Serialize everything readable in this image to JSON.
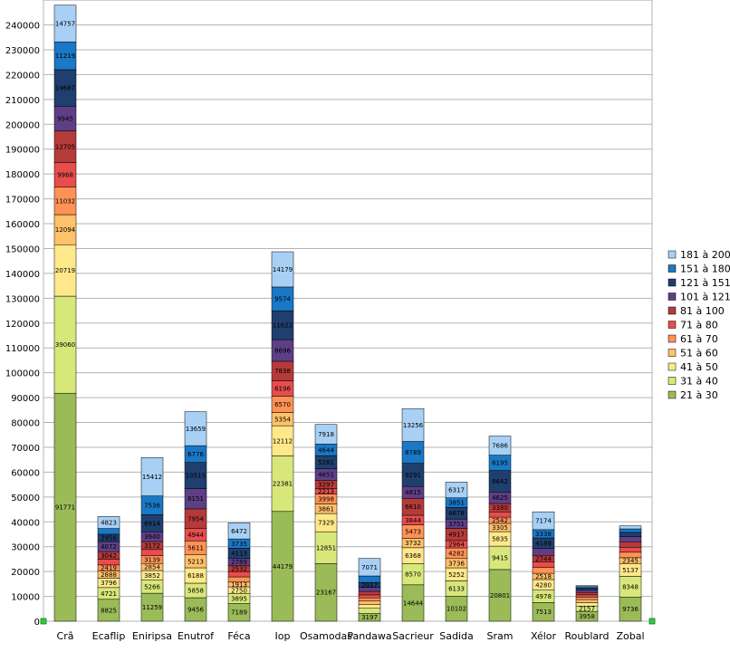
{
  "chart_data": {
    "type": "bar",
    "stacked": true,
    "title": "",
    "xlabel": "",
    "ylabel": "",
    "ylim": [
      0,
      250000
    ],
    "ytick_step": 10000,
    "grid": true,
    "legend_position": "right",
    "categories": [
      "Crâ",
      "Ecaflip",
      "Eniripsa",
      "Enutrof",
      "Féca",
      "Iop",
      "Osamodas",
      "Pandawa",
      "Sacrieur",
      "Sadida",
      "Sram",
      "Xélor",
      "Roublard",
      "Zobal"
    ],
    "series": [
      {
        "name": "21 à 30",
        "color": "#9bbb59",
        "values": [
          91771,
          8825,
          11259,
          9456,
          7189,
          44179,
          23167,
          3197,
          14644,
          10102,
          20801,
          7513,
          3958,
          9736
        ]
      },
      {
        "name": "31 à 40",
        "color": "#d7e77a",
        "values": [
          39060,
          4721,
          5266,
          5858,
          3895,
          22381,
          12851,
          2000,
          8570,
          6133,
          9415,
          4978,
          2157,
          8348
        ]
      },
      {
        "name": "41 à 50",
        "color": "#ffe88a",
        "values": [
          20719,
          3796,
          3852,
          6188,
          2750,
          12112,
          7329,
          1500,
          6368,
          5252,
          5835,
          4280,
          1400,
          5137
        ]
      },
      {
        "name": "51 à 60",
        "color": "#ffc169",
        "values": [
          12094,
          2888,
          2854,
          5213,
          1913,
          5354,
          3861,
          1400,
          3732,
          3736,
          3305,
          2518,
          1200,
          2345
        ]
      },
      {
        "name": "61 à 70",
        "color": "#ff9255",
        "values": [
          11032,
          2419,
          3139,
          5611,
          2100,
          6570,
          3998,
          1300,
          5473,
          4282,
          2542,
          2300,
          1000,
          2200
        ]
      },
      {
        "name": "71 à 80",
        "color": "#e84d4d",
        "values": [
          9968,
          2300,
          2500,
          4944,
          2100,
          6196,
          2213,
          1200,
          3844,
          2964,
          2100,
          2200,
          900,
          2000
        ]
      },
      {
        "name": "81 à 100",
        "color": "#b53a3a",
        "values": [
          12705,
          3042,
          3172,
          7954,
          2532,
          7838,
          3297,
          1400,
          6810,
          4917,
          3380,
          2744,
          1000,
          2200
        ]
      },
      {
        "name": "101 à 121",
        "color": "#5e3f86",
        "values": [
          9945,
          4072,
          3940,
          8151,
          2789,
          8696,
          4651,
          1600,
          4815,
          3751,
          4625,
          2800,
          900,
          2100
        ]
      },
      {
        "name": "121 à 151",
        "color": "#1f3f6e",
        "values": [
          14687,
          2956,
          6914,
          10515,
          4113,
          11622,
          5281,
          2017,
          9291,
          4678,
          8642,
          4189,
          800,
          1700
        ]
      },
      {
        "name": "151 à 180",
        "color": "#1a78c6",
        "values": [
          11219,
          2300,
          7536,
          6776,
          3735,
          9574,
          4644,
          2600,
          8789,
          3851,
          6195,
          3338,
          600,
          1400
        ]
      },
      {
        "name": "181 à 200",
        "color": "#a8d0f5",
        "values": [
          14757,
          4823,
          15412,
          13659,
          6472,
          14179,
          7918,
          7071,
          13256,
          6317,
          7686,
          7174,
          400,
          1200
        ]
      }
    ],
    "visible_labels": [
      [
        "91771",
        "39060",
        "20719",
        "12094",
        "11032",
        "9968",
        "12705",
        "9945",
        "14687",
        "11219",
        "14757"
      ],
      [
        "8825",
        "4721",
        "3796",
        "2888",
        "2419",
        "",
        "3042",
        "4072",
        "2956",
        "",
        "4823"
      ],
      [
        "11259",
        "5266",
        "3852",
        "2854",
        "3139",
        "",
        "3172",
        "3940",
        "6914",
        "7536",
        "15412"
      ],
      [
        "9456",
        "5858",
        "6188",
        "5213",
        "5611",
        "4944",
        "7954",
        "8151",
        "10515",
        "6776",
        "13659"
      ],
      [
        "7189",
        "3895",
        "2750",
        "1913",
        "",
        "",
        "2532",
        "2789",
        "4113",
        "3735",
        "6472"
      ],
      [
        "44179",
        "22381",
        "12112",
        "5354",
        "6570",
        "6196",
        "7838",
        "8696",
        "11622",
        "9574",
        "14179"
      ],
      [
        "23167",
        "12851",
        "7329",
        "3861",
        "3998",
        "2213",
        "3297",
        "4651",
        "5281",
        "4644",
        "7918"
      ],
      [
        "3197",
        "",
        "",
        "",
        "",
        "",
        "",
        "",
        "2017",
        "",
        "7071"
      ],
      [
        "14644",
        "8570",
        "6368",
        "3732",
        "5473",
        "3844",
        "6810",
        "4815",
        "9291",
        "8789",
        "13256"
      ],
      [
        "10102",
        "6133",
        "5252",
        "3736",
        "4282",
        "2964",
        "4917",
        "3751",
        "4678",
        "3851",
        "6317"
      ],
      [
        "20801",
        "9415",
        "5835",
        "3305",
        "2542",
        "",
        "3380",
        "4625",
        "8642",
        "6195",
        "7686"
      ],
      [
        "7513",
        "4978",
        "4280",
        "2518",
        "",
        "",
        "2744",
        "",
        "4189",
        "3338",
        "7174"
      ],
      [
        "3958",
        "2157",
        "",
        "",
        "",
        "",
        "",
        "",
        "",
        "",
        ""
      ],
      [
        "9736",
        "8348",
        "5137",
        "2345",
        "",
        "",
        "",
        "",
        "",
        "",
        ""
      ]
    ]
  }
}
